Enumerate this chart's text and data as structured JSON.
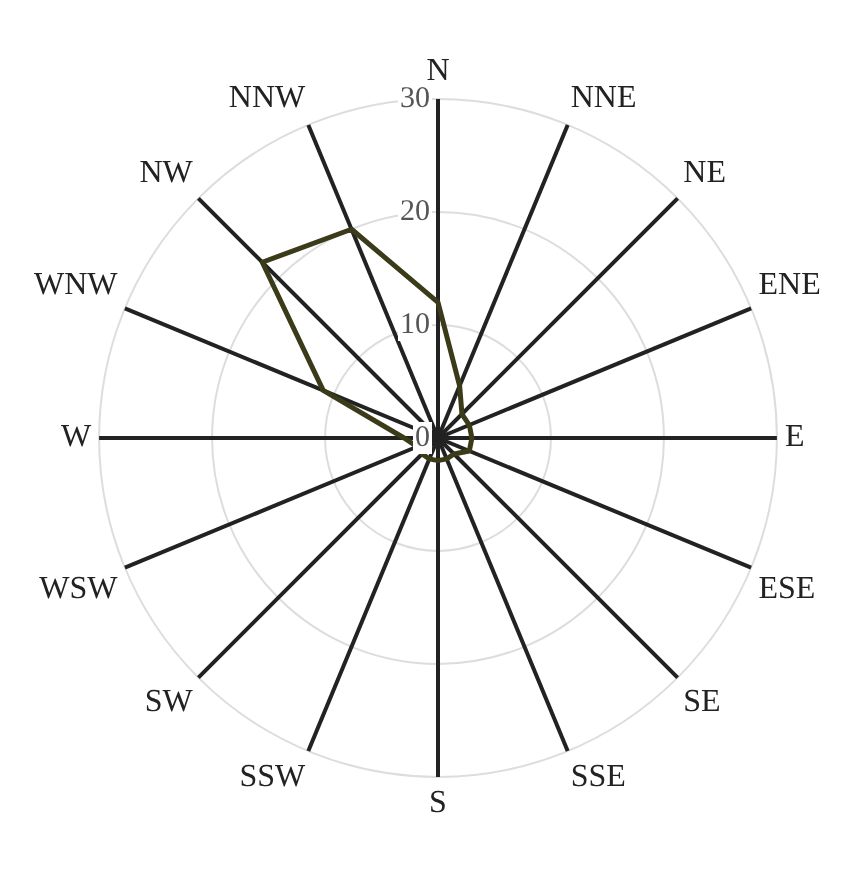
{
  "chart_data": {
    "type": "radar",
    "categories": [
      "N",
      "NNE",
      "NE",
      "ENE",
      "E",
      "ESE",
      "SE",
      "SSE",
      "S",
      "SSW",
      "SW",
      "WSW",
      "W",
      "WNW",
      "NW",
      "NNW"
    ],
    "series": [
      {
        "color": "#3b3b1a",
        "values": [
          12,
          5,
          3,
          3,
          3,
          3,
          2,
          2,
          2,
          2,
          2,
          2,
          3,
          11,
          22,
          20
        ]
      }
    ],
    "ylim": [
      0,
      30
    ],
    "yticks": [
      0,
      10,
      20,
      30
    ],
    "grid": true,
    "legend": false,
    "marker": "none",
    "line_style": "solid"
  }
}
